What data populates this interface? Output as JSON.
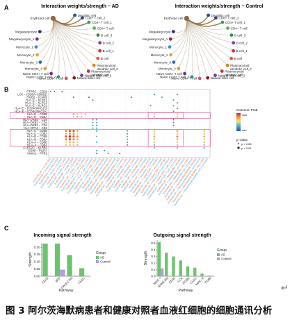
{
  "panel_labels": {
    "a": "A",
    "b": "B",
    "c": "C"
  },
  "panel_a": {
    "left": {
      "title": "Interaction weights/strength − AD",
      "source": "Erythroid cell",
      "source_color": "#8c6d3f",
      "nodes": [
        {
          "label": "Dendritic cell",
          "color": "#1f4e9c"
        },
        {
          "label": "CD8+ T cell_2",
          "color": "#2f3e8a"
        },
        {
          "label": "CD4+ T cell_1",
          "color": "#2ca45a"
        },
        {
          "label": "CD4+ T cell",
          "color": "#59b24c"
        },
        {
          "label": "B cell_3",
          "color": "#3c8a42"
        },
        {
          "label": "B cell_2",
          "color": "#8c3a8f"
        },
        {
          "label": "B cell_1",
          "color": "#d6312b"
        },
        {
          "label": "B cell",
          "color": "#e25b2b"
        },
        {
          "label": "Plasmacytoid\ndendritic cell_2",
          "color": "#e67e22"
        },
        {
          "label": "Plasmacytoid\ndendritic cell",
          "color": "#c0392b"
        },
        {
          "label": "Natural killer cell_2",
          "color": "#6d3f96"
        },
        {
          "label": "Natural killer cell",
          "color": "#8b1a1a"
        },
        {
          "label": "Naive CD8+ T cell",
          "color": "#d94f6a"
        },
        {
          "label": "Naive CD8+ T cell_2",
          "color": "#1b9e77"
        },
        {
          "label": "Naive CD4+ T cell",
          "color": "#7b2e8c"
        },
        {
          "label": "Monocyte_4",
          "color": "#e69a2e"
        },
        {
          "label": "Monocyte_3",
          "color": "#2b6fb5"
        },
        {
          "label": "Monocyte_2",
          "color": "#c9b037"
        },
        {
          "label": "Monocyte_1",
          "color": "#3b8fd6"
        },
        {
          "label": "Megakaryocyte_1",
          "color": "#7a2f6a"
        },
        {
          "label": "Megakaryocyte",
          "color": "#2d2f7a"
        }
      ]
    },
    "right": {
      "title": "Interaction weights/strength − Control",
      "source": "Erythroid cell",
      "source_color": "#8c6d3f",
      "nodes": [
        {
          "label": "Dendritic cell",
          "color": "#1f4e9c"
        },
        {
          "label": "CD8+ T cell_2",
          "color": "#2f3e8a"
        },
        {
          "label": "CD4+ T cell_1",
          "color": "#2ca45a"
        },
        {
          "label": "CD4+ T cell",
          "color": "#59b24c"
        },
        {
          "label": "B cell_3",
          "color": "#3c8a42"
        },
        {
          "label": "B cell_2",
          "color": "#8c3a8f"
        },
        {
          "label": "B cell_1",
          "color": "#d6312b"
        },
        {
          "label": "B cell",
          "color": "#e25b2b"
        },
        {
          "label": "Plasmacytoid\ndendritic cell_2",
          "color": "#e67e22"
        },
        {
          "label": "Plasmacytoid\ndendritic cell",
          "color": "#c0392b"
        },
        {
          "label": "Natural killer cell_2",
          "color": "#6d3f96"
        },
        {
          "label": "Natural killer cell",
          "color": "#8b1a1a"
        },
        {
          "label": "Naive CD8+ T cell",
          "color": "#d94f6a"
        },
        {
          "label": "Naive CD8+ T cell_2",
          "color": "#1b9e77"
        },
        {
          "label": "Naive CD4+ T cell",
          "color": "#7b2e8c"
        },
        {
          "label": "Monocyte_4",
          "color": "#e69a2e"
        },
        {
          "label": "Monocyte_3",
          "color": "#2b6fb5"
        },
        {
          "label": "Monocyte_2",
          "color": "#c9b037"
        },
        {
          "label": "Monocyte_1",
          "color": "#3b8fd6"
        },
        {
          "label": "Megakaryocyte_1",
          "color": "#7a2f6a"
        },
        {
          "label": "Megakaryocyte",
          "color": "#2d2f7a"
        }
      ]
    }
  },
  "panel_b": {
    "pairs": [
      "PTPRC − CD22",
      "LCK − (CD8A+CD8B1)",
      "ITGB2 − ICAM2",
      "HLA−E − KLRK1",
      "HLA−E − KLRC2",
      "HLA−E − KLRC1",
      "HLA−E − (CD94:NKG2C)",
      "HLA−E − (CD94:NKG2A)",
      "HLA−E − CD8B",
      "HLA−E − CD8A",
      "HLA−DRB5 − CD4",
      "HLA−DRB1 − CD4",
      "HLA−DPB1 − CD4",
      "HLA−DPA1 − CD4",
      "HLA−C − CD8B",
      "HLA−C − CD8A",
      "HLA−B − CD8B",
      "HLA−B − CD8A",
      "HLA−A − CD8B",
      "HLA−A − CD8A",
      "CLEC2C − KLRB1",
      "CD99 − PILRA",
      "ANXA1 − FPR1"
    ],
    "pvalue_legend": {
      "title": "p−value",
      "items": [
        "p > 0.05",
        "p < 0.01"
      ]
    },
    "colorbar": {
      "title": "Commun. Prob.",
      "max_label": "max",
      "min_label": "min"
    },
    "chart_data": {
      "type": "bubble",
      "groups": [
        "AD",
        "Control"
      ],
      "x_targets": [
        "B cell",
        "B cell_1",
        "B cell_2",
        "B cell_3",
        "CD4+ T cell",
        "CD4+ T cell_1",
        "CD8+ T cell_2",
        "Dendritic cell",
        "Megakaryocyte",
        "Megakaryocyte_1",
        "Monocyte_1",
        "Monocyte_2",
        "Monocyte_3",
        "Monocyte_4",
        "Naive CD4+ T cell",
        "Naive CD8+ T cell",
        "Naive CD8+ T cell_2",
        "Natural killer cell",
        "Natural killer cell_2",
        "Plasmacytoid dendritic cell",
        "Plasmacytoid dendritic cell_2"
      ],
      "x_label_prefix": "Erythroid cell −> ",
      "x_label_colors": [
        "#e25b2b",
        "#3a9ee0"
      ],
      "points": [
        {
          "pair": 0,
          "col": 0,
          "prob": 0.1
        },
        {
          "pair": 0,
          "col": 1,
          "prob": 0.1
        },
        {
          "pair": 0,
          "col": 3,
          "prob": 0.1
        },
        {
          "pair": 1,
          "col": 27,
          "prob": 0.2
        },
        {
          "pair": 1,
          "col": 33,
          "prob": 0.2
        },
        {
          "pair": 2,
          "col": 21,
          "prob": 0.1
        },
        {
          "pair": 2,
          "col": 29,
          "prob": 0.3
        },
        {
          "pair": 2,
          "col": 6,
          "prob": 0.1
        },
        {
          "pair": 2,
          "col": 10,
          "prob": 0.1
        },
        {
          "pair": 3,
          "col": 32,
          "prob": 0.2
        },
        {
          "pair": 4,
          "col": 33,
          "prob": 0.2
        },
        {
          "pair": 5,
          "col": 32,
          "prob": 0.3
        },
        {
          "pair": 6,
          "col": 33,
          "prob": 0.2
        },
        {
          "pair": 7,
          "col": 32,
          "prob": 0.2
        },
        {
          "pair": 3,
          "col": 11,
          "prob": 0.1
        },
        {
          "pair": 5,
          "col": 26,
          "prob": 0.2
        },
        {
          "pair": 8,
          "col": 6,
          "prob": 0.7
        },
        {
          "pair": 8,
          "col": 7,
          "prob": 0.5
        },
        {
          "pair": 8,
          "col": 8,
          "prob": 0.6
        },
        {
          "pair": 8,
          "col": 9,
          "prob": 0.4
        },
        {
          "pair": 9,
          "col": 6,
          "prob": 0.5
        },
        {
          "pair": 9,
          "col": 7,
          "prob": 0.3
        },
        {
          "pair": 9,
          "col": 8,
          "prob": 0.4
        },
        {
          "pair": 8,
          "col": 27,
          "prob": 0.5
        },
        {
          "pair": 9,
          "col": 27,
          "prob": 0.4
        },
        {
          "pair": 8,
          "col": 33,
          "prob": 0.6
        },
        {
          "pair": 9,
          "col": 33,
          "prob": 0.5
        },
        {
          "pair": 10,
          "col": 11,
          "prob": 0.2
        },
        {
          "pair": 10,
          "col": 12,
          "prob": 0.2
        },
        {
          "pair": 11,
          "col": 11,
          "prob": 0.3
        },
        {
          "pair": 11,
          "col": 12,
          "prob": 0.3
        },
        {
          "pair": 12,
          "col": 11,
          "prob": 0.2
        },
        {
          "pair": 12,
          "col": 12,
          "prob": 0.2
        },
        {
          "pair": 13,
          "col": 11,
          "prob": 0.2
        },
        {
          "pair": 13,
          "col": 12,
          "prob": 0.2
        },
        {
          "pair": 10,
          "col": 32,
          "prob": 0.1
        },
        {
          "pair": 11,
          "col": 32,
          "prob": 0.2
        },
        {
          "pair": 12,
          "col": 32,
          "prob": 0.1
        },
        {
          "pair": 14,
          "col": 4,
          "prob": 0.8
        },
        {
          "pair": 14,
          "col": 5,
          "prob": 0.9
        },
        {
          "pair": 14,
          "col": 6,
          "prob": 0.9
        },
        {
          "pair": 14,
          "col": 7,
          "prob": 0.7
        },
        {
          "pair": 15,
          "col": 4,
          "prob": 0.7
        },
        {
          "pair": 15,
          "col": 5,
          "prob": 0.8
        },
        {
          "pair": 15,
          "col": 6,
          "prob": 0.8
        },
        {
          "pair": 15,
          "col": 7,
          "prob": 0.6
        },
        {
          "pair": 16,
          "col": 4,
          "prob": 0.9
        },
        {
          "pair": 16,
          "col": 5,
          "prob": 1.0
        },
        {
          "pair": 16,
          "col": 6,
          "prob": 0.9
        },
        {
          "pair": 16,
          "col": 7,
          "prob": 0.8
        },
        {
          "pair": 17,
          "col": 4,
          "prob": 0.8
        },
        {
          "pair": 17,
          "col": 5,
          "prob": 0.9
        },
        {
          "pair": 17,
          "col": 6,
          "prob": 0.8
        },
        {
          "pair": 17,
          "col": 7,
          "prob": 0.7
        },
        {
          "pair": 18,
          "col": 4,
          "prob": 0.6
        },
        {
          "pair": 18,
          "col": 5,
          "prob": 0.7
        },
        {
          "pair": 18,
          "col": 6,
          "prob": 0.7
        },
        {
          "pair": 18,
          "col": 7,
          "prob": 0.5
        },
        {
          "pair": 19,
          "col": 4,
          "prob": 0.5
        },
        {
          "pair": 19,
          "col": 5,
          "prob": 0.6
        },
        {
          "pair": 19,
          "col": 6,
          "prob": 0.6
        },
        {
          "pair": 19,
          "col": 7,
          "prob": 0.4
        },
        {
          "pair": 14,
          "col": 12,
          "prob": 0.3
        },
        {
          "pair": 16,
          "col": 12,
          "prob": 0.4
        },
        {
          "pair": 18,
          "col": 12,
          "prob": 0.3
        },
        {
          "pair": 14,
          "col": 20,
          "prob": 0.3
        },
        {
          "pair": 15,
          "col": 20,
          "prob": 0.2
        },
        {
          "pair": 16,
          "col": 20,
          "prob": 0.3
        },
        {
          "pair": 17,
          "col": 20,
          "prob": 0.2
        },
        {
          "pair": 18,
          "col": 20,
          "prob": 0.2
        },
        {
          "pair": 19,
          "col": 20,
          "prob": 0.2
        },
        {
          "pair": 14,
          "col": 27,
          "prob": 0.6
        },
        {
          "pair": 15,
          "col": 27,
          "prob": 0.5
        },
        {
          "pair": 16,
          "col": 27,
          "prob": 0.7
        },
        {
          "pair": 17,
          "col": 27,
          "prob": 0.6
        },
        {
          "pair": 18,
          "col": 27,
          "prob": 0.5
        },
        {
          "pair": 19,
          "col": 27,
          "prob": 0.4
        },
        {
          "pair": 14,
          "col": 33,
          "prob": 0.7
        },
        {
          "pair": 15,
          "col": 33,
          "prob": 0.6
        },
        {
          "pair": 16,
          "col": 33,
          "prob": 0.8
        },
        {
          "pair": 17,
          "col": 33,
          "prob": 0.7
        },
        {
          "pair": 18,
          "col": 33,
          "prob": 0.6
        },
        {
          "pair": 19,
          "col": 33,
          "prob": 0.5
        },
        {
          "pair": 14,
          "col": 40,
          "prob": 0.6
        },
        {
          "pair": 15,
          "col": 40,
          "prob": 0.5
        },
        {
          "pair": 16,
          "col": 40,
          "prob": 0.7
        },
        {
          "pair": 17,
          "col": 40,
          "prob": 0.6
        },
        {
          "pair": 18,
          "col": 40,
          "prob": 0.5
        },
        {
          "pair": 19,
          "col": 40,
          "prob": 0.4
        },
        {
          "pair": 20,
          "col": 27,
          "prob": 0.2
        },
        {
          "pair": 20,
          "col": 33,
          "prob": 0.2
        },
        {
          "pair": 20,
          "col": 40,
          "prob": 0.2
        },
        {
          "pair": 21,
          "col": 12,
          "prob": 0.2
        },
        {
          "pair": 21,
          "col": 14,
          "prob": 0.2
        },
        {
          "pair": 22,
          "col": 12,
          "prob": 0.1
        },
        {
          "pair": 22,
          "col": 15,
          "prob": 0.2
        },
        {
          "pair": 22,
          "col": 18,
          "prob": 0.1
        }
      ]
    }
  },
  "panel_c": {
    "incoming": {
      "title": "Incoming signal strength",
      "chart_data": {
        "type": "bar",
        "categories": [
          "CD22",
          "APP",
          "GALECTIN",
          "CLEC"
        ],
        "series": [
          {
            "name": "AD",
            "color": "#6cc36d",
            "values": [
              0.225,
              0.225,
              0.145,
              0.055
            ]
          },
          {
            "name": "Control",
            "color": "#b39ddb",
            "values": [
              0,
              0.045,
              0,
              0
            ]
          }
        ],
        "xlabel": "Pathway",
        "ylabel": "Strength",
        "yticks": [
          "0.00",
          "0.05",
          "0.10",
          "0.15",
          "0.20"
        ],
        "ylim": [
          0,
          0.23
        ]
      },
      "legend": {
        "title": "Group",
        "items": [
          "AD",
          "Control"
        ]
      }
    },
    "outgoing": {
      "title": "Outgoing signal strength",
      "chart_data": {
        "type": "bar",
        "categories": [
          "MHC−I",
          "ANNEXIN",
          "CD45",
          "LCK",
          "ITGB2",
          "CLEC",
          "MHC−II",
          "CD99"
        ],
        "series": [
          {
            "name": "AD",
            "color": "#6cc36d",
            "values": [
              0.52,
              0.36,
              0.3,
              0.24,
              0.15,
              0.13,
              0.04,
              0.01
            ]
          },
          {
            "name": "Control",
            "color": "#b39ddb",
            "values": [
              0.12,
              0,
              0,
              0,
              0,
              0,
              0,
              0
            ]
          }
        ],
        "xlabel": "Pathway",
        "ylabel": "Strength",
        "yticks": [
          "0.0",
          "0.1",
          "0.2",
          "0.3",
          "0.4",
          "0.5"
        ],
        "ylim": [
          0,
          0.55
        ]
      },
      "legend": {
        "title": "Group",
        "items": [
          "AD",
          "Control"
        ]
      }
    }
  },
  "caption": "图 3   阿尔茨海默病患者和健康对照者血液红细胞的细胞通讯分析",
  "return_mark": "↵"
}
